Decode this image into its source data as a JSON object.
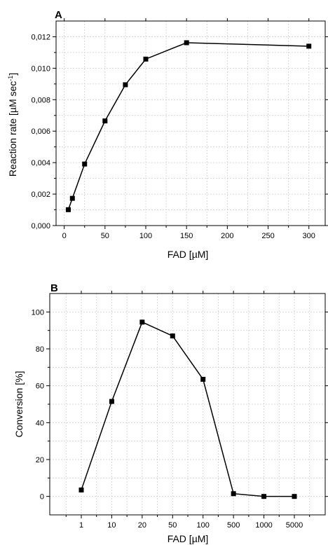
{
  "chart_data": [
    {
      "panel": "A",
      "type": "line",
      "xlabel": "FAD [µM]",
      "ylabel": "Reaction rate [µM sec",
      "ylabel_superscript": "-1",
      "ylabel_suffix": "]",
      "xlim": [
        -10,
        320
      ],
      "ylim": [
        0,
        0.013
      ],
      "xticks": [
        0,
        50,
        100,
        150,
        200,
        250,
        300
      ],
      "xtick_labels": [
        "0",
        "50",
        "100",
        "150",
        "200",
        "250",
        "300"
      ],
      "yticks": [
        0,
        0.002,
        0.004,
        0.006,
        0.008,
        0.01,
        0.012
      ],
      "ytick_labels": [
        "0,000",
        "0,002",
        "0,004",
        "0,006",
        "0,008",
        "0,010",
        "0,012"
      ],
      "grid": true,
      "series": [
        {
          "x": [
            5,
            10,
            25,
            50,
            75,
            100,
            150,
            300
          ],
          "values": [
            0.00101,
            0.00173,
            0.00391,
            0.00665,
            0.00895,
            0.01058,
            0.01162,
            0.0114
          ]
        }
      ]
    },
    {
      "panel": "B",
      "type": "line",
      "xlabel": "FAD [µM]",
      "ylabel": "Conversion [%]",
      "categories": [
        "1",
        "10",
        "20",
        "50",
        "100",
        "500",
        "1000",
        "5000"
      ],
      "ylim": [
        -10,
        110
      ],
      "yticks": [
        0,
        20,
        40,
        60,
        80,
        100
      ],
      "ytick_labels": [
        "0",
        "20",
        "40",
        "60",
        "80",
        "100"
      ],
      "grid": true,
      "series": [
        {
          "values": [
            3.5,
            51.5,
            94.5,
            87.0,
            63.5,
            1.5,
            0.0,
            0.0
          ]
        }
      ]
    }
  ]
}
